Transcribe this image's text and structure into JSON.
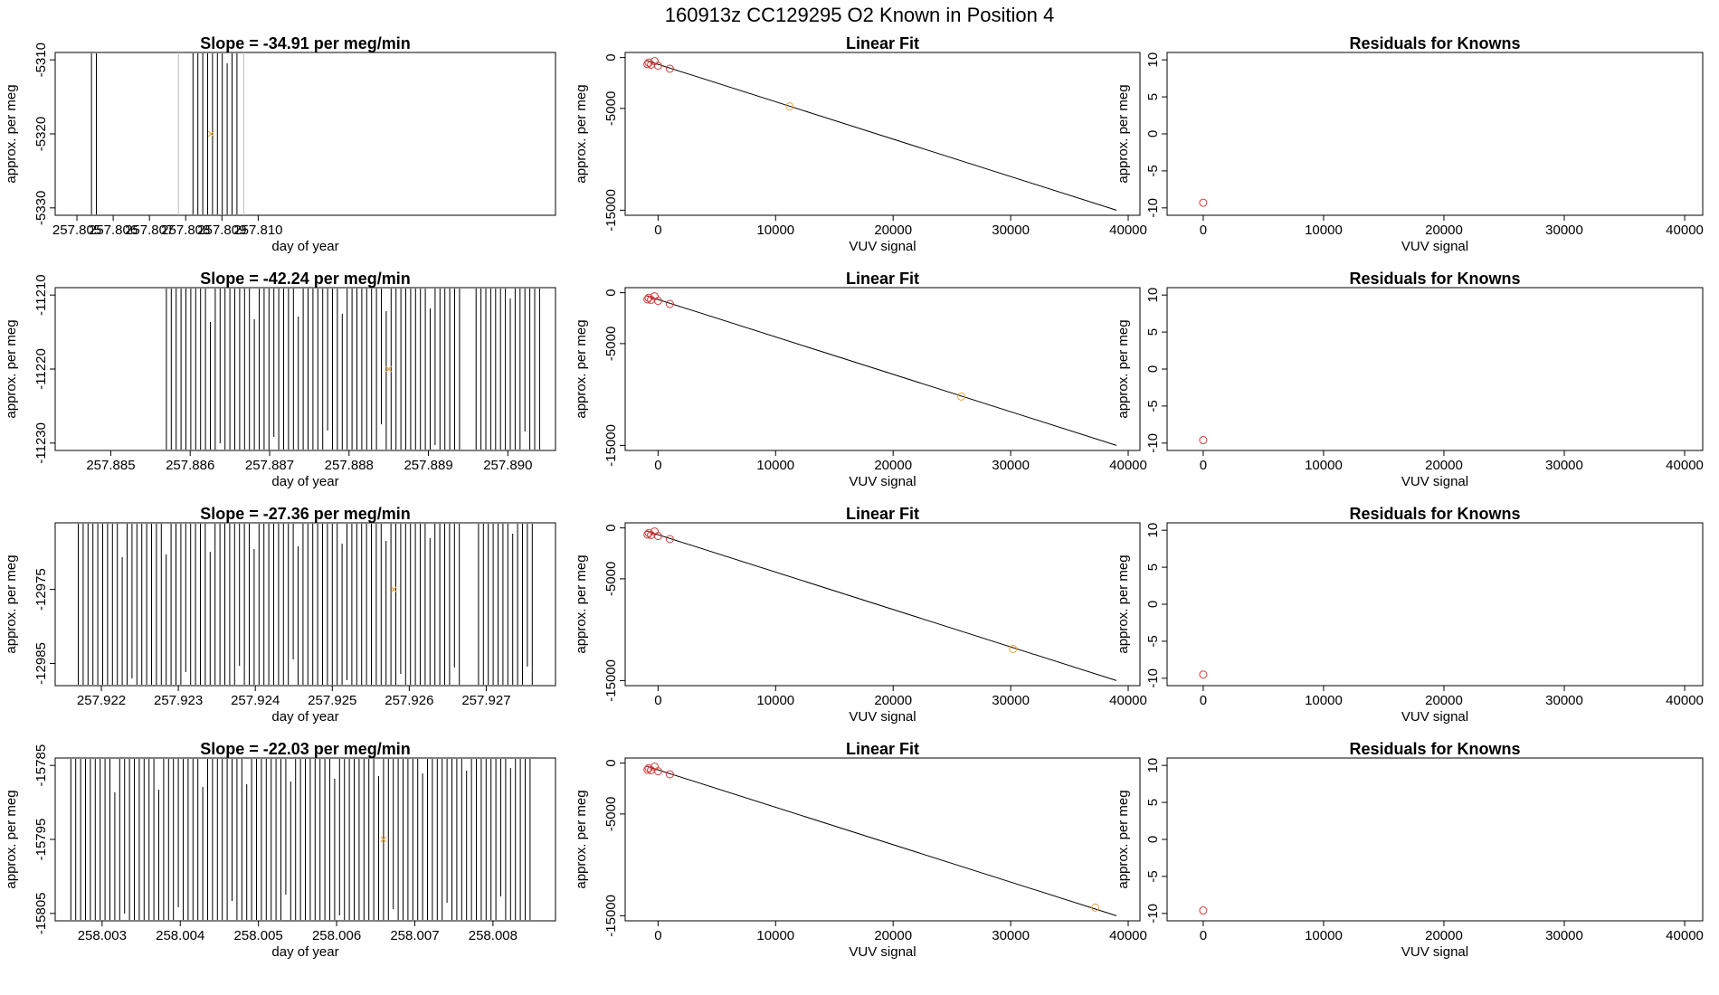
{
  "figure_title": "160913z      CC129295    O2 Known in Position  4",
  "colors": {
    "axis": "#000000",
    "trace": "#000000",
    "gap": "#bbbbbb",
    "marker": "#e8a23a",
    "known": "#d33a3a"
  },
  "chart_data": [
    {
      "row": 1,
      "time_panel": {
        "type": "line",
        "title": "Slope =  -34.91  per meg/min",
        "xlabel": "day of year",
        "ylabel": "approx. per meg",
        "xlim": [
          257.8044,
          257.8182
        ],
        "ylim": [
          -5331,
          -5309
        ],
        "xticks": [
          "257.805",
          "257.806",
          "257.807",
          "257.808",
          "257.809",
          "257.810"
        ],
        "yticks": [
          "-5310",
          "-5320",
          "-5330"
        ],
        "trace_segments": [
          [
            257.8054,
            257.8056
          ],
          [
            257.8082,
            257.8095
          ]
        ],
        "gap_lines": [
          257.8078,
          257.8096
        ],
        "marker": {
          "x": 257.8087,
          "y": -5320
        }
      },
      "fit_panel": {
        "type": "scatter",
        "title": "Linear Fit",
        "xlabel": "VUV signal",
        "ylabel": "approx. per meg",
        "xlim": [
          -2800,
          41000
        ],
        "ylim": [
          -15500,
          500
        ],
        "xticks": [
          "0",
          "10000",
          "20000",
          "30000",
          "40000"
        ],
        "yticks": [
          "0",
          "-5000",
          "-15000"
        ],
        "fit_line": [
          [
            -1000,
            -300
          ],
          [
            39000,
            -15000
          ]
        ],
        "knowns": [
          [
            -800,
            -500
          ],
          [
            -600,
            -700
          ],
          [
            -300,
            -350
          ],
          [
            0,
            -800
          ],
          [
            -900,
            -650
          ],
          [
            1000,
            -1100
          ]
        ],
        "sample": [
          11200,
          -4800
        ]
      },
      "resid_panel": {
        "type": "scatter",
        "title": "Residuals for Knowns",
        "xlabel": "VUV signal",
        "ylabel": "approx. per meg",
        "xlim": [
          -3000,
          41500
        ],
        "ylim": [
          -11,
          11
        ],
        "xticks": [
          "0",
          "10000",
          "20000",
          "30000",
          "40000"
        ],
        "yticks": [
          "10",
          "5",
          "0",
          "-5",
          "-10"
        ],
        "points": [
          [
            0,
            -9.3
          ]
        ]
      }
    },
    {
      "row": 2,
      "time_panel": {
        "type": "line",
        "title": "Slope =  -42.24  per meg/min",
        "xlabel": "day of year",
        "ylabel": "approx. per meg",
        "xlim": [
          257.8843,
          257.8906
        ],
        "ylim": [
          -11231,
          -11209
        ],
        "xticks": [
          "257.885",
          "257.886",
          "257.887",
          "257.888",
          "257.889",
          "257.890"
        ],
        "yticks": [
          "-11210",
          "-11220",
          "-11230"
        ],
        "trace_segments": [
          [
            257.8857,
            257.8894
          ],
          [
            257.8896,
            257.8904
          ]
        ],
        "gap_lines": [],
        "marker": {
          "x": 257.8885,
          "y": -11220
        }
      },
      "fit_panel": {
        "type": "scatter",
        "title": "Linear Fit",
        "xlabel": "VUV signal",
        "ylabel": "approx. per meg",
        "xlim": [
          -2800,
          41000
        ],
        "ylim": [
          -15500,
          500
        ],
        "xticks": [
          "0",
          "10000",
          "20000",
          "30000",
          "40000"
        ],
        "yticks": [
          "0",
          "-5000",
          "-15000"
        ],
        "fit_line": [
          [
            -1000,
            -300
          ],
          [
            39000,
            -15000
          ]
        ],
        "knowns": [
          [
            -800,
            -500
          ],
          [
            -600,
            -700
          ],
          [
            -300,
            -350
          ],
          [
            0,
            -800
          ],
          [
            -900,
            -650
          ],
          [
            1000,
            -1100
          ]
        ],
        "sample": [
          25800,
          -10200
        ]
      },
      "resid_panel": {
        "type": "scatter",
        "title": "Residuals for Knowns",
        "xlabel": "VUV signal",
        "ylabel": "approx. per meg",
        "xlim": [
          -3000,
          41500
        ],
        "ylim": [
          -11,
          11
        ],
        "xticks": [
          "0",
          "10000",
          "20000",
          "30000",
          "40000"
        ],
        "yticks": [
          "10",
          "5",
          "0",
          "-5",
          "-10"
        ],
        "points": [
          [
            0,
            -9.6
          ]
        ]
      }
    },
    {
      "row": 3,
      "time_panel": {
        "type": "line",
        "title": "Slope =  -27.36  per meg/min",
        "xlabel": "day of year",
        "ylabel": "approx. per meg",
        "xlim": [
          257.9214,
          257.9279
        ],
        "ylim": [
          -12988,
          -12966
        ],
        "xticks": [
          "257.922",
          "257.923",
          "257.924",
          "257.925",
          "257.926",
          "257.927"
        ],
        "yticks": [
          "-12975",
          "-12985"
        ],
        "trace_segments": [
          [
            257.9217,
            257.9267
          ],
          [
            257.9269,
            257.9276
          ]
        ],
        "gap_lines": [],
        "marker": {
          "x": 257.9258,
          "y": -12975
        }
      },
      "fit_panel": {
        "type": "scatter",
        "title": "Linear Fit",
        "xlabel": "VUV signal",
        "ylabel": "approx. per meg",
        "xlim": [
          -2800,
          41000
        ],
        "ylim": [
          -15500,
          500
        ],
        "xticks": [
          "0",
          "10000",
          "20000",
          "30000",
          "40000"
        ],
        "yticks": [
          "0",
          "-5000",
          "-15000"
        ],
        "fit_line": [
          [
            -1000,
            -300
          ],
          [
            39000,
            -15000
          ]
        ],
        "knowns": [
          [
            -800,
            -500
          ],
          [
            -600,
            -700
          ],
          [
            -300,
            -350
          ],
          [
            0,
            -800
          ],
          [
            -900,
            -650
          ],
          [
            1000,
            -1100
          ]
        ],
        "sample": [
          30200,
          -11900
        ]
      },
      "resid_panel": {
        "type": "scatter",
        "title": "Residuals for Knowns",
        "xlabel": "VUV signal",
        "ylabel": "approx. per meg",
        "xlim": [
          -3000,
          41500
        ],
        "ylim": [
          -11,
          11
        ],
        "xticks": [
          "0",
          "10000",
          "20000",
          "30000",
          "40000"
        ],
        "yticks": [
          "10",
          "5",
          "0",
          "-5",
          "-10"
        ],
        "points": [
          [
            0,
            -9.5
          ]
        ]
      }
    },
    {
      "row": 4,
      "time_panel": {
        "type": "line",
        "title": "Slope =  -22.03  per meg/min",
        "xlabel": "day of year",
        "ylabel": "approx. per meg",
        "xlim": [
          258.0024,
          258.0088
        ],
        "ylim": [
          -15806,
          -15784
        ],
        "xticks": [
          "258.003",
          "258.004",
          "258.005",
          "258.006",
          "258.007",
          "258.008"
        ],
        "yticks": [
          "-15785",
          "-15795",
          "-15805"
        ],
        "trace_segments": [
          [
            258.0026,
            258.0085
          ]
        ],
        "gap_lines": [],
        "marker": {
          "x": 258.0066,
          "y": -15795
        }
      },
      "fit_panel": {
        "type": "scatter",
        "title": "Linear Fit",
        "xlabel": "VUV signal",
        "ylabel": "approx. per meg",
        "xlim": [
          -2800,
          41000
        ],
        "ylim": [
          -15500,
          500
        ],
        "xticks": [
          "0",
          "10000",
          "20000",
          "30000",
          "40000"
        ],
        "yticks": [
          "0",
          "-5000",
          "-15000"
        ],
        "fit_line": [
          [
            -1000,
            -300
          ],
          [
            39000,
            -15000
          ]
        ],
        "knowns": [
          [
            -800,
            -500
          ],
          [
            -600,
            -700
          ],
          [
            -300,
            -350
          ],
          [
            0,
            -800
          ],
          [
            -900,
            -650
          ],
          [
            1000,
            -1100
          ]
        ],
        "sample": [
          37200,
          -14200
        ]
      },
      "resid_panel": {
        "type": "scatter",
        "title": "Residuals for Knowns",
        "xlabel": "VUV signal",
        "ylabel": "approx. per meg",
        "xlim": [
          -3000,
          41500
        ],
        "ylim": [
          -11,
          11
        ],
        "xticks": [
          "0",
          "10000",
          "20000",
          "30000",
          "40000"
        ],
        "yticks": [
          "10",
          "5",
          "0",
          "-5",
          "-10"
        ],
        "points": [
          [
            0,
            -9.6
          ]
        ]
      }
    }
  ]
}
